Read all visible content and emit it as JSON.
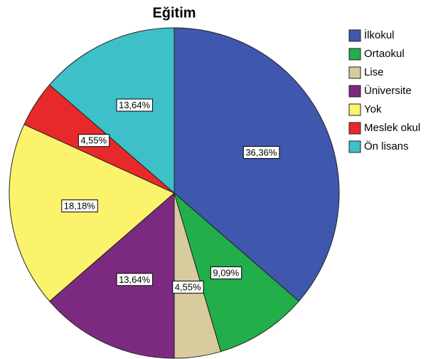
{
  "chart_data": {
    "type": "pie",
    "title": "Eğitim",
    "categories": [
      "İlkokul",
      "Ortaokul",
      "Lise",
      "Üniversite",
      "Yok",
      "Meslek okul",
      "Ön lisans"
    ],
    "values": [
      36.36,
      9.09,
      4.55,
      13.64,
      18.18,
      4.55,
      13.64
    ],
    "value_labels": [
      "36,36%",
      "9,09%",
      "4,55%",
      "13,64%",
      "18,18%",
      "4,55%",
      "13,64%"
    ],
    "colors": [
      "#3f57ad",
      "#22ae4b",
      "#d8cc9f",
      "#7c2a80",
      "#fcf36c",
      "#e8292b",
      "#3dc0c8"
    ],
    "legend": "right"
  }
}
